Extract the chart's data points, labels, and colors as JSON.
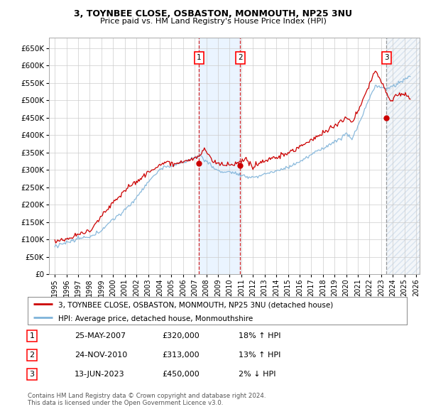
{
  "title1": "3, TOYNBEE CLOSE, OSBASTON, MONMOUTH, NP25 3NU",
  "title2": "Price paid vs. HM Land Registry's House Price Index (HPI)",
  "legend_line1": "3, TOYNBEE CLOSE, OSBASTON, MONMOUTH, NP25 3NU (detached house)",
  "legend_line2": "HPI: Average price, detached house, Monmouthshire",
  "sale1_date": "25-MAY-2007",
  "sale1_price": "£320,000",
  "sale1_hpi": "18% ↑ HPI",
  "sale2_date": "24-NOV-2010",
  "sale2_price": "£313,000",
  "sale2_hpi": "13% ↑ HPI",
  "sale3_date": "13-JUN-2023",
  "sale3_price": "£450,000",
  "sale3_hpi": "2% ↓ HPI",
  "footer1": "Contains HM Land Registry data © Crown copyright and database right 2024.",
  "footer2": "This data is licensed under the Open Government Licence v3.0.",
  "house_color": "#cc0000",
  "hpi_color": "#7fb3d9",
  "background_color": "#ffffff",
  "grid_color": "#cccccc",
  "shade_color": "#ddeeff",
  "ylim_min": 0,
  "ylim_max": 680000,
  "yticks": [
    0,
    50000,
    100000,
    150000,
    200000,
    250000,
    300000,
    350000,
    400000,
    450000,
    500000,
    550000,
    600000,
    650000
  ],
  "xstart": 1995,
  "xend": 2026,
  "xticks": [
    1995,
    1996,
    1997,
    1998,
    1999,
    2000,
    2001,
    2002,
    2003,
    2004,
    2005,
    2006,
    2007,
    2008,
    2009,
    2010,
    2011,
    2012,
    2013,
    2014,
    2015,
    2016,
    2017,
    2018,
    2019,
    2020,
    2021,
    2022,
    2023,
    2024,
    2025,
    2026
  ],
  "sale1_year": 2007.37,
  "sale2_year": 2010.91,
  "sale3_year": 2023.45,
  "sale1_price_val": 320000,
  "sale2_price_val": 313000,
  "sale3_price_val": 450000
}
